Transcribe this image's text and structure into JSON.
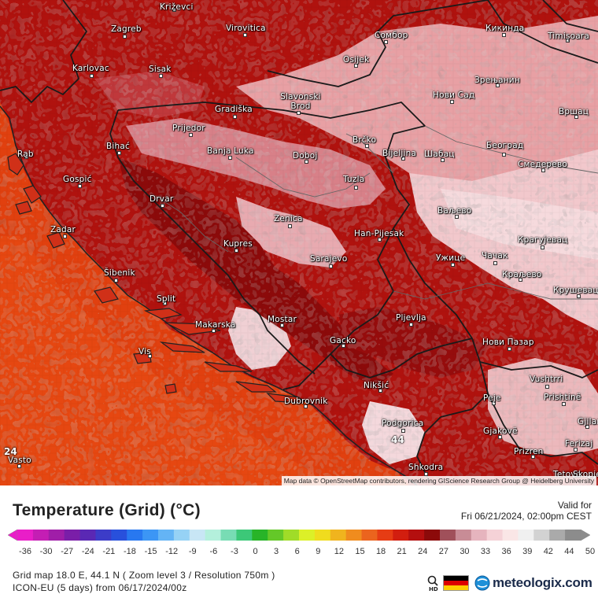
{
  "legend": {
    "title": "Temperature (Grid) (°C)",
    "valid_label": "Valid for",
    "valid_date": "Fri 06/21/2024, 02:00pm CEST",
    "tick_labels": [
      "-36",
      "-30",
      "-27",
      "-24",
      "-21",
      "-18",
      "-15",
      "-12",
      "-9",
      "-6",
      "-3",
      "0",
      "3",
      "6",
      "9",
      "12",
      "15",
      "18",
      "21",
      "24",
      "27",
      "30",
      "33",
      "36",
      "39",
      "42",
      "44",
      "50"
    ],
    "color_stops": [
      "#e91ec8",
      "#c41eb4",
      "#a01ea8",
      "#7a1ea8",
      "#5a28b4",
      "#3c3cc8",
      "#2850dc",
      "#2878f0",
      "#3c96f5",
      "#64b4f5",
      "#96d2f5",
      "#c8e6f5",
      "#b4f0dc",
      "#78dcb4",
      "#3cc878",
      "#28b428",
      "#64c828",
      "#a0dc28",
      "#dcf028",
      "#f0dc1e",
      "#f0b41e",
      "#f08c1e",
      "#eb641e",
      "#e63c14",
      "#d21e0f",
      "#b40f0f",
      "#8c0a0a",
      "#a0505a",
      "#c88c96",
      "#e6b4be",
      "#f5d2d7",
      "#fae6e6",
      "#f0f0f0",
      "#d2d2d2",
      "#aaaaaa",
      "#8c8c8c"
    ]
  },
  "footer": {
    "grid_info": "Grid map 18.0 E, 44.1 N ( Zoom level 3 / Resolution 750m )",
    "model_info": "ICON-EU (5 days) from 06/17/2024/00z",
    "brand": "meteologix.com",
    "hd_label": "HD"
  },
  "map": {
    "attribution": "Map data © OpenStreetMap contributors, rendering GIScience Research Group @ Heidelberg University",
    "cities": [
      {
        "name": "Križevci"
      },
      {
        "name": "Zagreb"
      },
      {
        "name": "Virovitica"
      },
      {
        "name": "Сомбор"
      },
      {
        "name": "Кикинда"
      },
      {
        "name": "Timișoara"
      },
      {
        "name": "Karlovac"
      },
      {
        "name": "Sisak"
      },
      {
        "name": "Osijek"
      },
      {
        "name": "Зрењанин"
      },
      {
        "name": "Нови Сад"
      },
      {
        "name": "Slavonski Brod"
      },
      {
        "name": "Gradiška"
      },
      {
        "name": "Вршац"
      },
      {
        "name": "Prijedor"
      },
      {
        "name": "Brčko"
      },
      {
        "name": "Bihać"
      },
      {
        "name": "Banja Luka"
      },
      {
        "name": "Bijeljina"
      },
      {
        "name": "Шабац"
      },
      {
        "name": "Београд"
      },
      {
        "name": "Doboj"
      },
      {
        "name": "Смедерево"
      },
      {
        "name": "Rab"
      },
      {
        "name": "Gospić"
      },
      {
        "name": "Tuzla"
      },
      {
        "name": "Drvar"
      },
      {
        "name": "Ваљево"
      },
      {
        "name": "Zenica"
      },
      {
        "name": "Zadar"
      },
      {
        "name": "Han-Pijesak"
      },
      {
        "name": "Kupres"
      },
      {
        "name": "Крагујевац"
      },
      {
        "name": "Sarajevo"
      },
      {
        "name": "Ужице"
      },
      {
        "name": "Чачак"
      },
      {
        "name": "Šibenik"
      },
      {
        "name": "Краљево"
      },
      {
        "name": "Крушевац"
      },
      {
        "name": "Split"
      },
      {
        "name": "Mostar"
      },
      {
        "name": "Pljevlja"
      },
      {
        "name": "Makarska"
      },
      {
        "name": "Gacko"
      },
      {
        "name": "Нови Пазар"
      },
      {
        "name": "Vis"
      },
      {
        "name": "Nikšić"
      },
      {
        "name": "Vushtrri"
      },
      {
        "name": "Dubrovnik"
      },
      {
        "name": "Peje"
      },
      {
        "name": "Prishtinë"
      },
      {
        "name": "Podgorica"
      },
      {
        "name": "Gjilan"
      },
      {
        "name": "Gjakovë"
      },
      {
        "name": "Ferizaj"
      },
      {
        "name": "Prizren"
      },
      {
        "name": "Shkodra"
      },
      {
        "name": "Vasto"
      },
      {
        "name": "Tetovo"
      },
      {
        "name": "Skopje"
      }
    ],
    "values": [
      {
        "value": "24"
      },
      {
        "value": "44"
      }
    ]
  }
}
